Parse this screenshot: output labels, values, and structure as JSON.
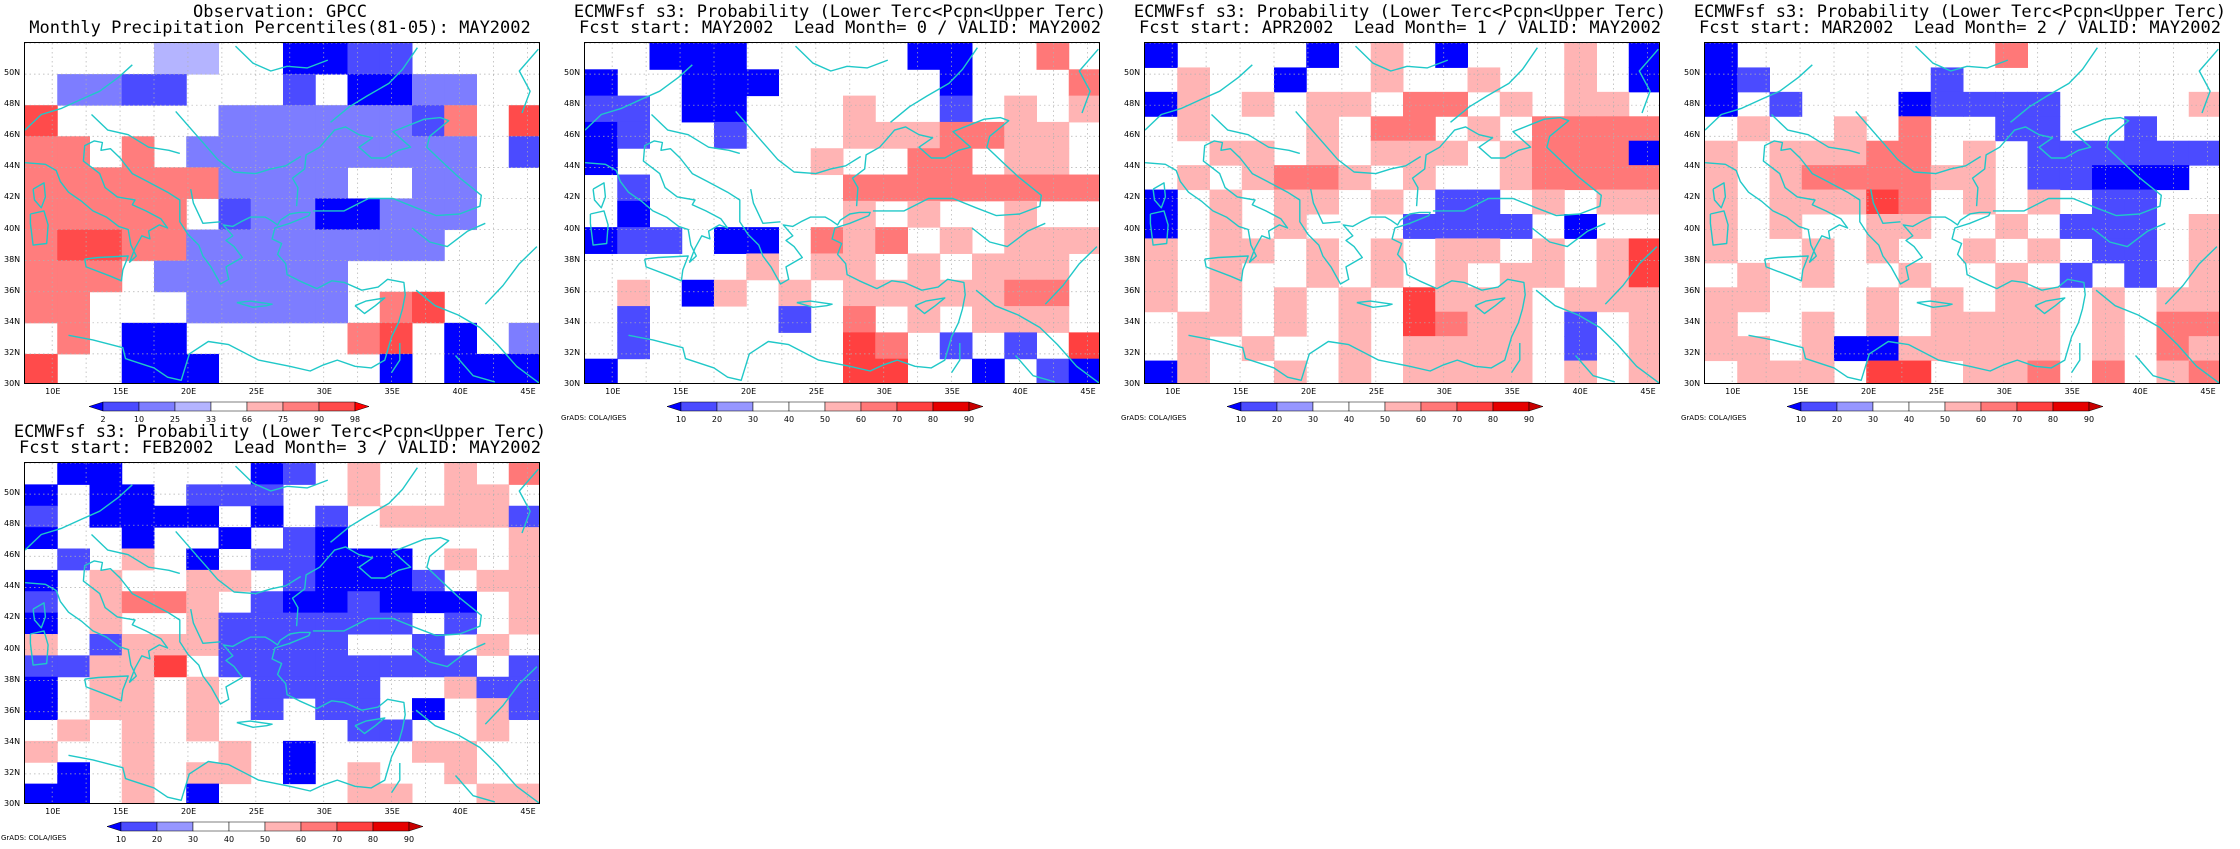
{
  "panels": [
    {
      "id": "obs",
      "title1": "Observation: GPCC",
      "title2": "Monthly Precipitation Percentiles(81-05): MAY2002",
      "colorbar_levels": [
        "2",
        "10",
        "25",
        "33",
        "66",
        "75",
        "90",
        "98"
      ],
      "palette": [
        "#0000ff",
        "#4b4bff",
        "#7d7dff",
        "#b4b4ff",
        "#ffffff",
        "#ffb4b4",
        "#ff7d7d",
        "#ff4b4b",
        "#ff0000"
      ],
      "credit": "",
      "grid": [
        "WWWW33WW0011WWWW",
        "W2211WWW1W0022WW",
        "7WWWWW22222216W7",
        "66W6W222222222W1",
        "6666662222WW22WW",
        "66666W12200222WW",
        "6776622222222WWW",
        "666W222222WWWWWW",
        "66WWW22222W67WWW",
        "W6W00WWWWW67W0W2",
        "7WW000WWWWW0W000"
      ]
    },
    {
      "id": "lead0",
      "title1": "ECMWFsf s3: Probability (Lower Terc<Pcpn<Upper Terc)",
      "title2": "Fcst start: MAY2002  Lead Month= 0 / VALID: MAY2002",
      "colorbar_levels": [
        "10",
        "20",
        "30",
        "40",
        "50",
        "60",
        "70",
        "80",
        "90"
      ],
      "palette": [
        "#0000ff",
        "#4b4bff",
        "#9696ff",
        "#ffffff",
        "#ffffff",
        "#ffb4b4",
        "#ff7878",
        "#ff4040",
        "#e60000",
        "#c80000"
      ],
      "credit": "GrADS: COLA/IGES",
      "grid": [
        "WW000WWWWW00WW6W",
        "0WW000WWWWW0WWW6",
        "11W00WWW5WW1W5W5",
        "01WW1WWW5556655W",
        "0WWWWWW5WW66W55W",
        "W1WWWWWW66666666",
        "W0WWWWWW5W5WW5WW",
        "011W00W656W5W555",
        "WWWWW5W55W5W555W",
        "W5W05W5W5555566W",
        "W1WWWW1W6W5W555W",
        "W1WWWWWW76W1W1W7",
        "0WWWWWWW77WW0W10"
      ]
    },
    {
      "id": "lead1",
      "title1": "ECMWFsf s3: Probability (Lower Terc<Pcpn<Upper Terc)",
      "title2": "Fcst start: APR2002  Lead Month= 1 / VALID: MAY2002",
      "colorbar_levels": [
        "10",
        "20",
        "30",
        "40",
        "50",
        "60",
        "70",
        "80",
        "90"
      ],
      "palette": [
        "#0000ff",
        "#4b4bff",
        "#9696ff",
        "#ffffff",
        "#ffffff",
        "#ffb4b4",
        "#ff7878",
        "#ff4040",
        "#e60000",
        "#c80000"
      ],
      "credit": "GrADS: COLA/IGES",
      "grid": [
        "0WWWW0W5W0WWW5W0",
        "W5WW0WW5WW5WW5W0",
        "05W5W55W66W5W55W",
        "W5WWW5W66W5W6666",
        "WW55W5W555W56660",
        "W5W5665W5WW56666",
        "0W5W55W5W11W5W55",
        "0W5W5WWW1111W0WW",
        "5W55W5W5W55W5W57",
        "5W5WW5W5W5W55W57",
        "5W5W5W5W7555W555",
        "W55W5W5W7655W1W5",
        "W5W5WW5W5555W1W5",
        "05WW5W5W5555W5W5"
      ]
    },
    {
      "id": "lead2",
      "title1": "ECMWFsf s3: Probability (Lower Terc<Pcpn<Upper Terc)",
      "title2": "Fcst start: MAR2002  Lead Month= 2 / VALID: MAY2002",
      "colorbar_levels": [
        "10",
        "20",
        "30",
        "40",
        "50",
        "60",
        "70",
        "80",
        "90"
      ],
      "palette": [
        "#0000ff",
        "#4b4bff",
        "#9696ff",
        "#ffffff",
        "#ffffff",
        "#ffb4b4",
        "#ff7878",
        "#ff4040",
        "#e60000",
        "#c80000"
      ],
      "credit": "GrADS: COLA/IGES",
      "grid": [
        "0WWWWWWWW6WWWWWW",
        "01WWWWW1WWWWWWWW",
        "0W1WWW01111WWWW5",
        "W5WW5W6WW11WW1WW",
        "5W55566W5W111111",
        "5W5666655W11000W",
        "5W55576W5W5W11WW",
        "5W5WW55WW5W111W5",
        "5WW5W5WW5W5W11W5",
        "W5W5WW5WW5W1W1W5",
        "55WWW5W5W55W5W55",
        "5WW5W5W5555W5W66",
        "55W50055555W5W65",
        "W555W77W556W6W56"
      ]
    },
    {
      "id": "lead3",
      "title1": "ECMWFsf s3: Probability (Lower Terc<Pcpn<Upper Terc)",
      "title2": "Fcst start: FEB2002  Lead Month= 3 / VALID: MAY2002",
      "colorbar_levels": [
        "10",
        "20",
        "30",
        "40",
        "50",
        "60",
        "70",
        "80",
        "90"
      ],
      "palette": [
        "#0000ff",
        "#4b4bff",
        "#9696ff",
        "#ffffff",
        "#ffffff",
        "#ffb4b4",
        "#ff7878",
        "#ff4040",
        "#e60000",
        "#c80000"
      ],
      "credit": "GrADS: COLA/IGES",
      "grid": [
        "W00WWWW01W5WW5W6",
        "0W00W111WW5WW55W",
        "1W0000W0W1W55551",
        "0WW0WW0W10WWWWW5",
        "W1W5W0W11000W5W5",
        "0W5WW55W10001W55",
        "1W5665W1001000W5",
        "0W5WW5111111W1W5",
        "5W15551111WW1W5W",
        "11557W11111111W1",
        "0W55W5W1111WW511",
        "0W55W5W1W11W0W51",
        "W5W5W5WWWW11WW5W",
        "5WW5WW5W0WWW55WW",
        "W0W5W55W0W5WW5WW",
        "00W5W0WWWW55WW55"
      ]
    }
  ]
}
